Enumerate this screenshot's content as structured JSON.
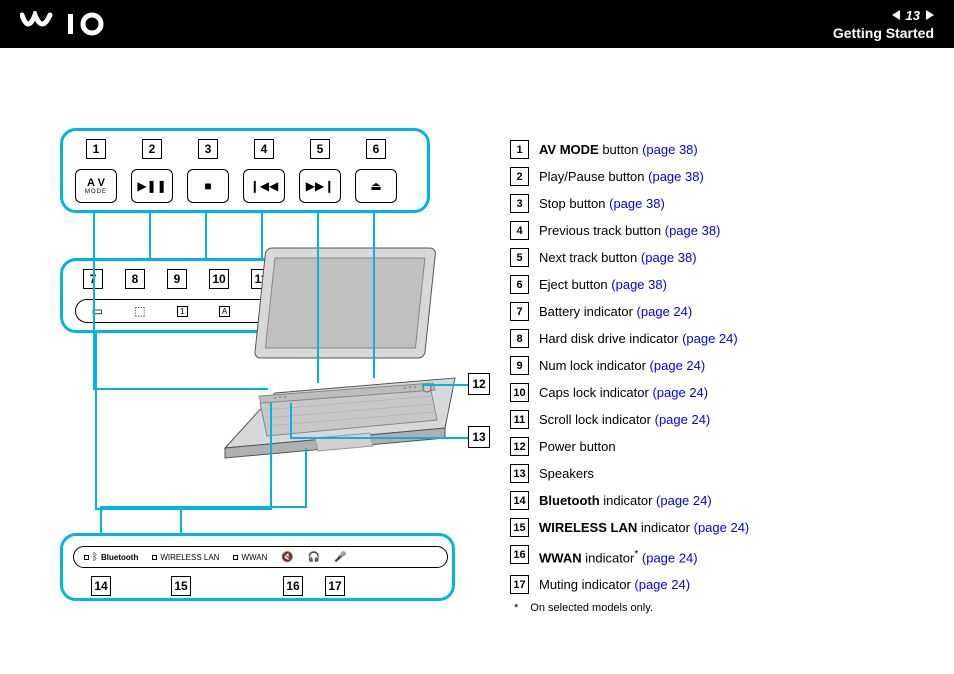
{
  "header": {
    "logo": "VAIO",
    "page_number": "13",
    "section": "Getting Started"
  },
  "colors": {
    "callout_border": "#00b5e2",
    "link": "#0000ee",
    "header_bg": "#000000"
  },
  "callout1": {
    "numbers": [
      "1",
      "2",
      "3",
      "4",
      "5",
      "6"
    ],
    "buttons": [
      {
        "type": "av",
        "line1": "A V",
        "line2": "MODE"
      },
      {
        "type": "playpause",
        "glyph": "▶❚❚"
      },
      {
        "type": "stop",
        "glyph": "■"
      },
      {
        "type": "prev",
        "glyph": "❙◀◀"
      },
      {
        "type": "next",
        "glyph": "▶▶❙"
      },
      {
        "type": "eject",
        "glyph": "⏏"
      }
    ]
  },
  "callout2": {
    "numbers": [
      "7",
      "8",
      "9",
      "10",
      "11"
    ],
    "indicators": [
      "▭",
      "⬚",
      "1",
      "A",
      "⇳"
    ]
  },
  "callout3": {
    "numbers": [
      "14",
      "15",
      "16",
      "17"
    ],
    "items": [
      {
        "icon": "led",
        "label": "Bluetooth",
        "bold": true,
        "glyph": "ᛒ"
      },
      {
        "icon": "led",
        "label": "WIRELESS LAN"
      },
      {
        "icon": "led",
        "label": "WWAN"
      },
      {
        "icon": "",
        "label": "",
        "glyph": "🔇"
      },
      {
        "icon": "",
        "label": "",
        "glyph": "🎧"
      },
      {
        "icon": "",
        "label": "",
        "glyph": "🎤"
      }
    ]
  },
  "side_labels": {
    "n12": "12",
    "n13": "13"
  },
  "legend": [
    {
      "n": "1",
      "bold": "AV MODE",
      "text": " button ",
      "ref": "(page 38)"
    },
    {
      "n": "2",
      "text": "Play/Pause button ",
      "ref": "(page 38)"
    },
    {
      "n": "3",
      "text": "Stop button ",
      "ref": "(page 38)"
    },
    {
      "n": "4",
      "text": "Previous track button ",
      "ref": "(page 38)"
    },
    {
      "n": "5",
      "text": "Next track button ",
      "ref": "(page 38)"
    },
    {
      "n": "6",
      "text": "Eject button ",
      "ref": "(page 38)"
    },
    {
      "n": "7",
      "text": "Battery indicator ",
      "ref": "(page 24)"
    },
    {
      "n": "8",
      "text": "Hard disk drive indicator ",
      "ref": "(page 24)"
    },
    {
      "n": "9",
      "text": "Num lock indicator ",
      "ref": "(page 24)"
    },
    {
      "n": "10",
      "text": "Caps lock indicator ",
      "ref": "(page 24)"
    },
    {
      "n": "11",
      "text": "Scroll lock indicator ",
      "ref": "(page 24)"
    },
    {
      "n": "12",
      "text": "Power button"
    },
    {
      "n": "13",
      "text": "Speakers"
    },
    {
      "n": "14",
      "bold": "Bluetooth",
      "text": " indicator ",
      "ref": "(page 24)"
    },
    {
      "n": "15",
      "bold": "WIRELESS LAN",
      "text": " indicator ",
      "ref": "(page 24)"
    },
    {
      "n": "16",
      "bold": "WWAN",
      "text": " indicator",
      "star": "*",
      "post": " ",
      "ref": "(page 24)"
    },
    {
      "n": "17",
      "text": "Muting indicator ",
      "ref": "(page 24)"
    }
  ],
  "footnote": {
    "mark": "*",
    "text": "On selected models only."
  }
}
